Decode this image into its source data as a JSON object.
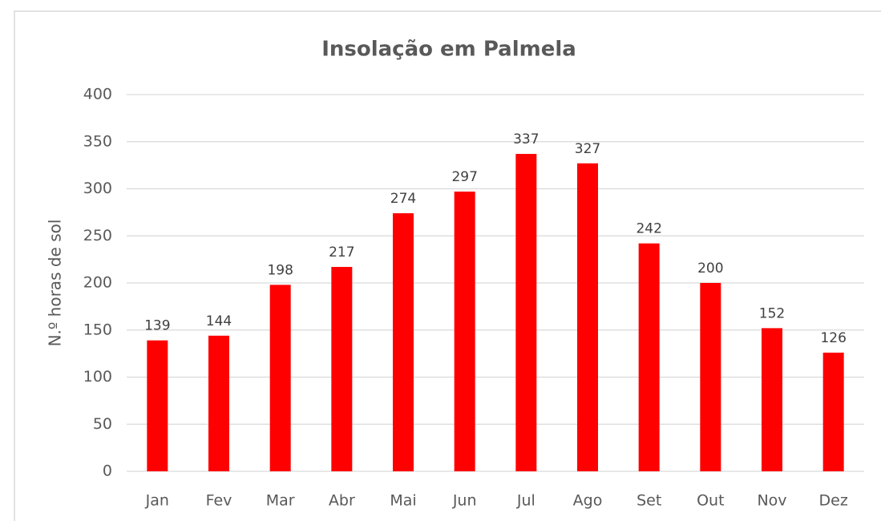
{
  "chart_data": {
    "type": "bar",
    "title": "Insolação em Palmela",
    "y_label": "N.º horas de sol",
    "categories": [
      "Jan",
      "Fev",
      "Mar",
      "Abr",
      "Mai",
      "Jun",
      "Jul",
      "Ago",
      "Set",
      "Out",
      "Nov",
      "Dez"
    ],
    "values": [
      139,
      144,
      198,
      217,
      274,
      297,
      337,
      327,
      242,
      200,
      152,
      126
    ],
    "color": "#ff0000",
    "ylim": [
      0,
      400
    ],
    "yticks": [
      0,
      50,
      100,
      150,
      200,
      250,
      300,
      350,
      400
    ],
    "grid": true
  }
}
